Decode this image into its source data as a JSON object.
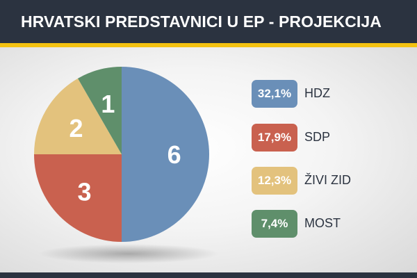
{
  "header": {
    "title": "HRVATSKI PREDSTAVNICI U EP - PROJEKCIJA"
  },
  "colors": {
    "header_bg": "#2b3340",
    "accent_stripe": "#f4c211",
    "hdz": "#6a8fb8",
    "sdp": "#c9614f",
    "zivi_zid": "#e3c27d",
    "most": "#5f8f6b"
  },
  "chart_data": {
    "type": "pie",
    "title": "HRVATSKI PREDSTAVNICI U EP - PROJEKCIJA",
    "slices": [
      {
        "name": "HDZ",
        "value": 6,
        "percent": "32,1%",
        "color": "#6a8fb8"
      },
      {
        "name": "SDP",
        "value": 3,
        "percent": "17,9%",
        "color": "#c9614f"
      },
      {
        "name": "ŽIVI ZID",
        "value": 2,
        "percent": "12,3%",
        "color": "#e3c27d"
      },
      {
        "name": "MOST",
        "value": 1,
        "percent": "7,4%",
        "color": "#5f8f6b"
      }
    ],
    "legend": "right"
  }
}
